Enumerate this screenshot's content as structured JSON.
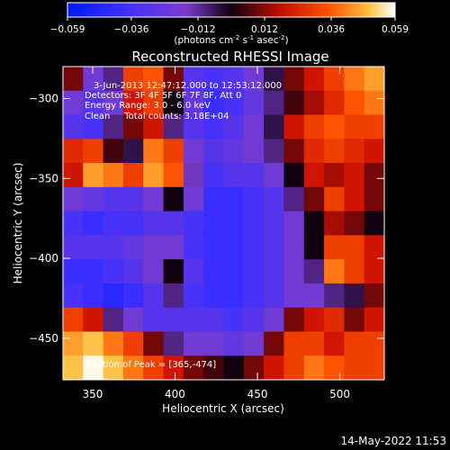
{
  "chart_data": {
    "type": "heatmap",
    "title": "Reconstructed RHESSI Image",
    "xlabel": "Heliocentric X (arcsec)",
    "ylabel": "Heliocentric Y (arcsec)",
    "xlim": [
      332,
      527
    ],
    "ylim": [
      -476,
      -280
    ],
    "x_ticks": [
      350,
      400,
      450,
      500
    ],
    "y_ticks": [
      -300,
      -350,
      -400,
      -450
    ],
    "colorbar": {
      "min": -0.059,
      "max": 0.059,
      "ticks": [
        "-0.059",
        "-0.036",
        "-0.012",
        "0.012",
        "0.036",
        "0.059"
      ],
      "unit_label_parts": [
        "(photons cm",
        "-2",
        " s",
        "-1",
        " asec",
        "-2",
        ")"
      ]
    },
    "annotations": [
      "3-Jun-2013 12:47:12.000 to 12:53:12.000",
      "Detectors: 3F 4F 5F 6F 7F 8F, Att 0",
      "Energy Range: 3.0 - 6.0 keV",
      "Clean     Total counts: 3.18E+04",
      "Position of Peak = [365,-474]"
    ],
    "peak": {
      "x": 365,
      "y": -474
    },
    "grid": [
      [
        0.01,
        -0.02,
        -0.01,
        0.03,
        0.035,
        0.01,
        -0.03,
        -0.035,
        -0.03,
        -0.02,
        -0.005,
        0.01,
        0.02,
        0.03,
        0.04,
        0.045
      ],
      [
        -0.02,
        -0.03,
        -0.02,
        0.02,
        0.03,
        0.0,
        -0.025,
        -0.04,
        -0.035,
        -0.025,
        -0.01,
        0.005,
        0.015,
        0.025,
        0.035,
        0.04
      ],
      [
        -0.03,
        -0.035,
        -0.01,
        0.01,
        0.02,
        -0.01,
        -0.03,
        -0.035,
        -0.03,
        -0.02,
        -0.005,
        0.02,
        0.03,
        0.035,
        0.03,
        0.03
      ],
      [
        0.025,
        0.03,
        0.005,
        -0.005,
        0.04,
        0.03,
        -0.02,
        -0.03,
        -0.025,
        -0.02,
        -0.01,
        0.01,
        0.025,
        0.03,
        0.025,
        0.02
      ],
      [
        0.02,
        0.045,
        0.04,
        0.03,
        0.045,
        0.035,
        -0.015,
        -0.035,
        -0.03,
        -0.03,
        -0.02,
        0.0,
        0.02,
        0.015,
        0.02,
        0.01
      ],
      [
        -0.02,
        -0.025,
        -0.03,
        -0.03,
        -0.02,
        0.0,
        -0.02,
        -0.04,
        -0.04,
        -0.035,
        -0.03,
        -0.01,
        0.01,
        0.03,
        0.02,
        0.01
      ],
      [
        -0.035,
        -0.04,
        -0.035,
        -0.035,
        -0.03,
        -0.03,
        -0.035,
        -0.04,
        -0.04,
        -0.035,
        -0.03,
        -0.02,
        0.0,
        0.015,
        0.01,
        0.0
      ],
      [
        -0.03,
        -0.03,
        -0.03,
        -0.025,
        -0.02,
        -0.02,
        -0.035,
        -0.04,
        -0.04,
        -0.035,
        -0.03,
        -0.02,
        0.0,
        0.03,
        0.03,
        0.02
      ],
      [
        -0.04,
        -0.04,
        -0.035,
        -0.03,
        -0.02,
        0.0,
        -0.03,
        -0.04,
        -0.04,
        -0.035,
        -0.03,
        -0.02,
        -0.01,
        0.04,
        0.03,
        0.02
      ],
      [
        -0.035,
        -0.04,
        -0.045,
        -0.04,
        -0.03,
        -0.01,
        -0.035,
        -0.04,
        -0.04,
        -0.035,
        -0.03,
        -0.02,
        -0.02,
        -0.01,
        -0.005,
        0.01
      ],
      [
        0.03,
        0.02,
        -0.01,
        -0.02,
        -0.03,
        -0.03,
        -0.03,
        -0.03,
        -0.035,
        -0.03,
        -0.02,
        0.01,
        0.02,
        0.025,
        0.01,
        0.02
      ],
      [
        0.045,
        0.05,
        0.04,
        0.03,
        0.01,
        -0.01,
        -0.02,
        -0.02,
        -0.025,
        -0.02,
        0.01,
        0.03,
        0.03,
        0.02,
        0.03,
        0.03
      ],
      [
        0.05,
        0.058,
        0.05,
        0.04,
        0.03,
        0.02,
        0.01,
        0.005,
        0.0,
        0.01,
        0.02,
        0.03,
        0.04,
        0.035,
        0.03,
        0.03
      ]
    ]
  },
  "footer": {
    "timestamp": "14-May-2022 11:53"
  }
}
